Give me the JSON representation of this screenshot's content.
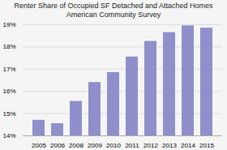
{
  "chart_data": {
    "type": "bar",
    "title": "Renter Share of Occupied SF Detached and Attached Homes\nAmerican Community Survey",
    "categories": [
      "2005",
      "2006",
      "2008",
      "2009",
      "2010",
      "2011",
      "2012",
      "2013",
      "2014",
      "2015"
    ],
    "values": [
      14.7,
      14.55,
      15.55,
      16.4,
      16.85,
      17.55,
      18.25,
      18.65,
      18.95,
      18.85
    ],
    "color": "#8f8fcc",
    "ylim": [
      14.0,
      19.0
    ],
    "yticks": [
      {
        "value": 14,
        "label": "14%"
      },
      {
        "value": 15,
        "label": "15%"
      },
      {
        "value": 16,
        "label": "16%"
      },
      {
        "value": 17,
        "label": "17%"
      },
      {
        "value": 18,
        "label": "18%"
      },
      {
        "value": 19,
        "label": "19%"
      }
    ],
    "grid": true
  }
}
